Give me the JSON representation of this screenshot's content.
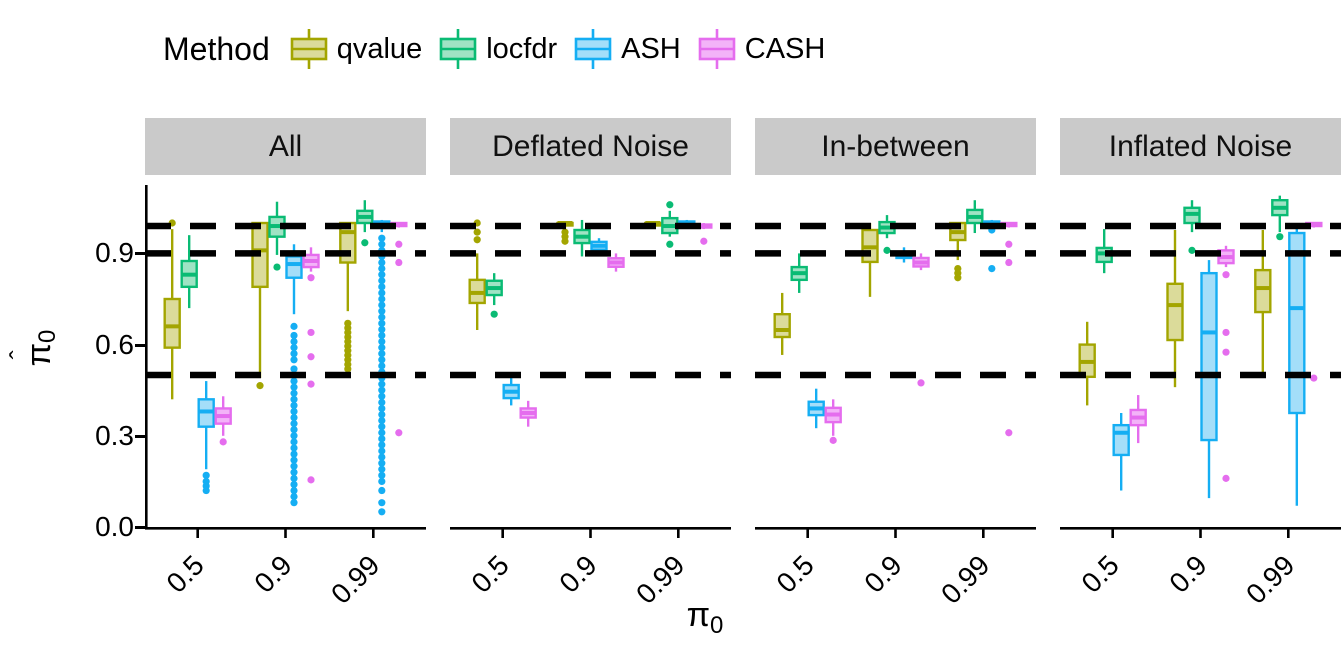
{
  "legend": {
    "title": "Method",
    "items": [
      {
        "label": "qvalue",
        "color": "#A3A500",
        "fill": "#DBDB9A"
      },
      {
        "label": "locfdr",
        "color": "#0ABB74",
        "fill": "#9FE3C4"
      },
      {
        "label": "ASH",
        "color": "#15AEF3",
        "fill": "#A4DEF9"
      },
      {
        "label": "CASH",
        "color": "#E56DEE",
        "fill": "#F3B3F8"
      }
    ]
  },
  "axes": {
    "y_title_symbol": "π",
    "y_title_hat": "ˆ",
    "y_title_sub": "0",
    "x_title_symbol": "π",
    "x_title_sub": "0",
    "y_ticks": [
      "0.0",
      "0.3",
      "0.6",
      "0.9"
    ]
  },
  "chart_data": {
    "type": "boxplot",
    "xlabel": "pi_0",
    "ylabel": "pi_0_hat (estimated null proportion)",
    "x_categories": [
      "0.5",
      "0.9",
      "0.99"
    ],
    "methods": [
      "qvalue",
      "locfdr",
      "ASH",
      "CASH"
    ],
    "reference_lines": [
      0.5,
      0.9,
      0.99
    ],
    "y_domain": [
      0,
      1.125
    ],
    "y_tick_values": [
      0.0,
      0.3,
      0.6,
      0.9
    ],
    "grid": false,
    "legend_position": "top-left",
    "facets": [
      {
        "label": "All",
        "groups": [
          [
            {
              "method": "qvalue",
              "box": [
                0.42,
                0.59,
                0.66,
                0.75,
                0.98
              ],
              "out": [
                1.0
              ]
            },
            {
              "method": "locfdr",
              "box": [
                0.72,
                0.79,
                0.83,
                0.875,
                0.96
              ],
              "out": []
            },
            {
              "method": "ASH",
              "box": [
                0.19,
                0.33,
                0.38,
                0.42,
                0.48
              ],
              "out": [
                0.17,
                0.15,
                0.135,
                0.12
              ]
            },
            {
              "method": "CASH",
              "box": [
                0.3,
                0.34,
                0.365,
                0.39,
                0.43
              ],
              "out": [
                0.28
              ]
            }
          ],
          [
            {
              "method": "qvalue",
              "box": [
                0.49,
                0.79,
                0.91,
                1.0,
                1.0
              ],
              "out": [
                0.465
              ]
            },
            {
              "method": "locfdr",
              "box": [
                0.895,
                0.955,
                0.99,
                1.02,
                1.07
              ],
              "out": [
                0.855
              ]
            },
            {
              "method": "ASH",
              "box": [
                0.7,
                0.82,
                0.865,
                0.89,
                0.93
              ],
              "out": [
                0.66,
                0.63,
                0.61,
                0.59,
                0.57,
                0.55,
                0.52,
                0.5,
                0.48,
                0.46,
                0.44,
                0.42,
                0.4,
                0.38,
                0.36,
                0.34,
                0.32,
                0.3,
                0.28,
                0.26,
                0.24,
                0.22,
                0.2,
                0.18,
                0.16,
                0.14,
                0.12,
                0.1,
                0.08
              ]
            },
            {
              "method": "CASH",
              "box": [
                0.84,
                0.855,
                0.875,
                0.895,
                0.92
              ],
              "out": [
                0.82,
                0.64,
                0.56,
                0.47,
                0.155
              ]
            }
          ],
          [
            {
              "method": "qvalue",
              "box": [
                0.71,
                0.87,
                0.97,
                1.0,
                1.0
              ],
              "out": [
                0.67,
                0.655,
                0.64,
                0.625,
                0.61,
                0.595,
                0.58,
                0.565,
                0.55,
                0.535,
                0.52
              ]
            },
            {
              "method": "locfdr",
              "box": [
                0.97,
                1.0,
                1.02,
                1.04,
                1.075
              ],
              "out": [
                0.935
              ]
            },
            {
              "method": "ASH",
              "box": [
                0.97,
                0.99,
                1.0,
                1.005,
                1.01
              ],
              "out": [
                0.95,
                0.93,
                0.91,
                0.89,
                0.87,
                0.85,
                0.83,
                0.81,
                0.79,
                0.77,
                0.75,
                0.73,
                0.71,
                0.69,
                0.67,
                0.65,
                0.63,
                0.61,
                0.59,
                0.57,
                0.55,
                0.53,
                0.51,
                0.49,
                0.47,
                0.45,
                0.43,
                0.41,
                0.39,
                0.37,
                0.35,
                0.33,
                0.31,
                0.29,
                0.27,
                0.25,
                0.23,
                0.21,
                0.19,
                0.17,
                0.15,
                0.12,
                0.08,
                0.05
              ]
            },
            {
              "method": "CASH",
              "box": [
                0.985,
                0.99,
                0.995,
                1.0,
                1.0
              ],
              "out": [
                0.93,
                0.87,
                0.31
              ]
            }
          ]
        ]
      },
      {
        "label": "Deflated Noise",
        "groups": [
          [
            {
              "method": "qvalue",
              "box": [
                0.648,
                0.737,
                0.77,
                0.813,
                0.9
              ],
              "out": [
                1.0,
                0.97,
                0.945
              ]
            },
            {
              "method": "locfdr",
              "box": [
                0.73,
                0.763,
                0.786,
                0.81,
                0.835
              ],
              "out": [
                0.7
              ]
            },
            {
              "method": "ASH",
              "box": [
                0.4,
                0.424,
                0.445,
                0.467,
                0.49
              ],
              "out": []
            },
            {
              "method": "CASH",
              "box": [
                0.33,
                0.36,
                0.375,
                0.39,
                0.415
              ],
              "out": []
            }
          ],
          [
            {
              "method": "qvalue",
              "box": [
                0.985,
                0.995,
                1.0,
                1.0,
                1.0
              ],
              "out": [
                0.97,
                0.955,
                0.94
              ]
            },
            {
              "method": "locfdr",
              "box": [
                0.89,
                0.934,
                0.955,
                0.977,
                1.01
              ],
              "out": []
            },
            {
              "method": "ASH",
              "box": [
                0.9,
                0.912,
                0.925,
                0.938,
                0.95
              ],
              "out": []
            },
            {
              "method": "CASH",
              "box": [
                0.84,
                0.856,
                0.87,
                0.884,
                0.9
              ],
              "out": []
            }
          ],
          [
            {
              "method": "qvalue",
              "box": [
                0.995,
                1.0,
                1.0,
                1.0,
                1.0
              ],
              "out": []
            },
            {
              "method": "locfdr",
              "box": [
                0.955,
                0.967,
                0.99,
                1.016,
                1.04
              ],
              "out": [
                1.06,
                0.93
              ]
            },
            {
              "method": "ASH",
              "box": [
                0.99,
                0.995,
                1.0,
                1.005,
                1.01
              ],
              "out": []
            },
            {
              "method": "CASH",
              "box": [
                0.98,
                0.985,
                0.99,
                0.995,
                1.0
              ],
              "out": [
                0.94
              ]
            }
          ]
        ]
      },
      {
        "label": "In-between",
        "groups": [
          [
            {
              "method": "qvalue",
              "box": [
                0.566,
                0.625,
                0.648,
                0.7,
                0.77
              ],
              "out": []
            },
            {
              "method": "locfdr",
              "box": [
                0.77,
                0.813,
                0.835,
                0.855,
                0.9
              ],
              "out": []
            },
            {
              "method": "ASH",
              "box": [
                0.325,
                0.368,
                0.39,
                0.412,
                0.455
              ],
              "out": []
            },
            {
              "method": "CASH",
              "box": [
                0.3,
                0.345,
                0.37,
                0.392,
                0.42
              ],
              "out": [
                0.285
              ]
            }
          ],
          [
            {
              "method": "qvalue",
              "box": [
                0.757,
                0.872,
                0.92,
                0.977,
                1.0
              ],
              "out": []
            },
            {
              "method": "locfdr",
              "box": [
                0.95,
                0.967,
                0.985,
                1.003,
                1.026
              ],
              "out": [
                0.91
              ]
            },
            {
              "method": "ASH",
              "box": [
                0.87,
                0.885,
                0.895,
                0.905,
                0.92
              ],
              "out": []
            },
            {
              "method": "CASH",
              "box": [
                0.845,
                0.857,
                0.87,
                0.885,
                0.9
              ],
              "out": [
                0.474
              ]
            }
          ],
          [
            {
              "method": "qvalue",
              "box": [
                0.878,
                0.944,
                0.97,
                1.0,
                1.0
              ],
              "out": [
                0.85,
                0.835,
                0.82
              ]
            },
            {
              "method": "locfdr",
              "box": [
                0.967,
                1.0,
                1.02,
                1.043,
                1.075
              ],
              "out": []
            },
            {
              "method": "ASH",
              "box": [
                0.99,
                0.995,
                1.0,
                1.005,
                1.01
              ],
              "out": [
                0.977,
                0.85
              ]
            },
            {
              "method": "CASH",
              "box": [
                0.985,
                0.99,
                0.995,
                1.0,
                1.0
              ],
              "out": [
                0.93,
                0.87,
                0.31
              ]
            }
          ]
        ]
      },
      {
        "label": "Inflated Noise",
        "groups": [
          [
            {
              "method": "qvalue",
              "box": [
                0.4,
                0.494,
                0.543,
                0.6,
                0.675
              ],
              "out": []
            },
            {
              "method": "locfdr",
              "box": [
                0.835,
                0.872,
                0.9,
                0.918,
                0.98
              ],
              "out": []
            },
            {
              "method": "ASH",
              "box": [
                0.12,
                0.237,
                0.31,
                0.335,
                0.375
              ],
              "out": []
            },
            {
              "method": "CASH",
              "box": [
                0.276,
                0.335,
                0.36,
                0.385,
                0.434
              ],
              "out": []
            }
          ],
          [
            {
              "method": "qvalue",
              "box": [
                0.46,
                0.615,
                0.73,
                0.8,
                0.977
              ],
              "out": []
            },
            {
              "method": "locfdr",
              "box": [
                0.97,
                1.0,
                1.03,
                1.05,
                1.075
              ],
              "out": [
                0.91
              ]
            },
            {
              "method": "ASH",
              "box": [
                0.095,
                0.286,
                0.64,
                0.835,
                0.878
              ],
              "out": []
            },
            {
              "method": "CASH",
              "box": [
                0.855,
                0.868,
                0.888,
                0.91,
                0.925
              ],
              "out": [
                0.83,
                0.64,
                0.575,
                0.16
              ]
            }
          ],
          [
            {
              "method": "qvalue",
              "box": [
                0.506,
                0.707,
                0.786,
                0.845,
                0.977
              ],
              "out": []
            },
            {
              "method": "locfdr",
              "box": [
                0.97,
                1.026,
                1.05,
                1.075,
                1.09
              ],
              "out": [
                0.955
              ]
            },
            {
              "method": "ASH",
              "box": [
                0.07,
                0.375,
                0.72,
                0.967,
                0.99
              ],
              "out": []
            },
            {
              "method": "CASH",
              "box": [
                0.985,
                0.99,
                0.995,
                1.0,
                1.0
              ],
              "out": [
                0.49
              ]
            }
          ]
        ]
      }
    ]
  }
}
